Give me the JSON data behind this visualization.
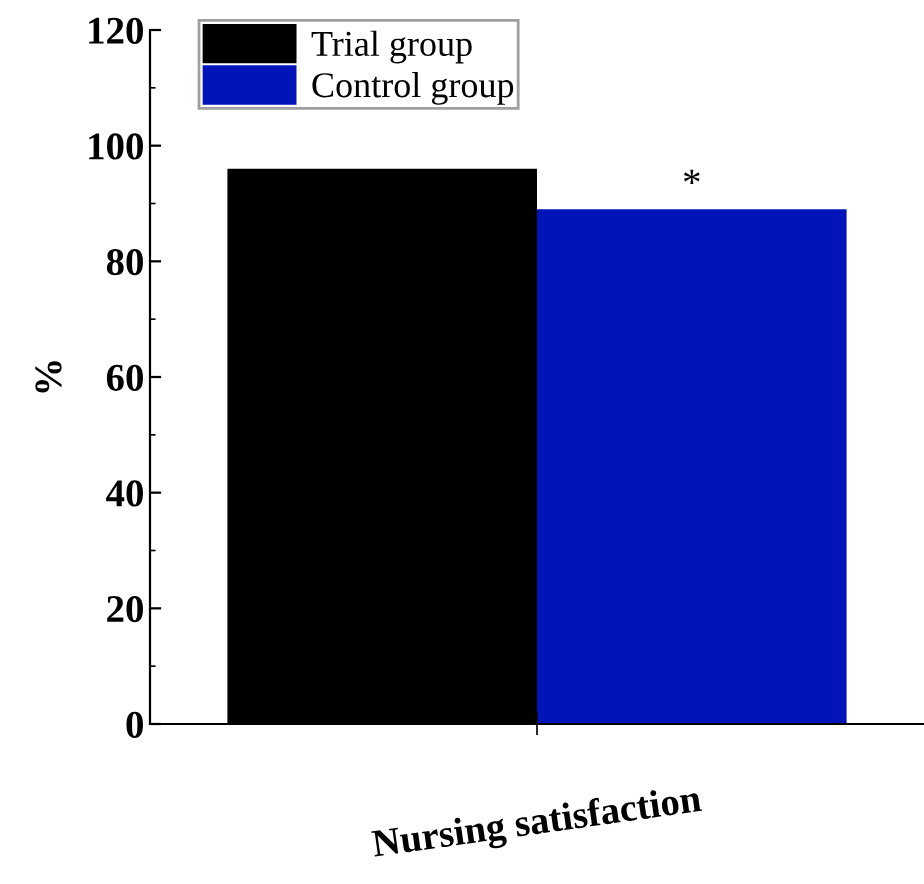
{
  "chart_data": {
    "type": "bar",
    "xlabel": "Nursing satisfaction",
    "ylabel": "%",
    "categories": [
      null,
      null
    ],
    "series": [
      {
        "name": "Trial group",
        "color": "#000000",
        "values": [
          96,
          null
        ]
      },
      {
        "name": "Control group",
        "color": "#0014b8",
        "values": [
          null,
          89
        ]
      }
    ],
    "ylim": [
      0,
      120
    ],
    "yticks": [
      0,
      20,
      40,
      60,
      80,
      100,
      120
    ],
    "grid": false,
    "legend": "top left",
    "annotations": [
      "*"
    ]
  }
}
